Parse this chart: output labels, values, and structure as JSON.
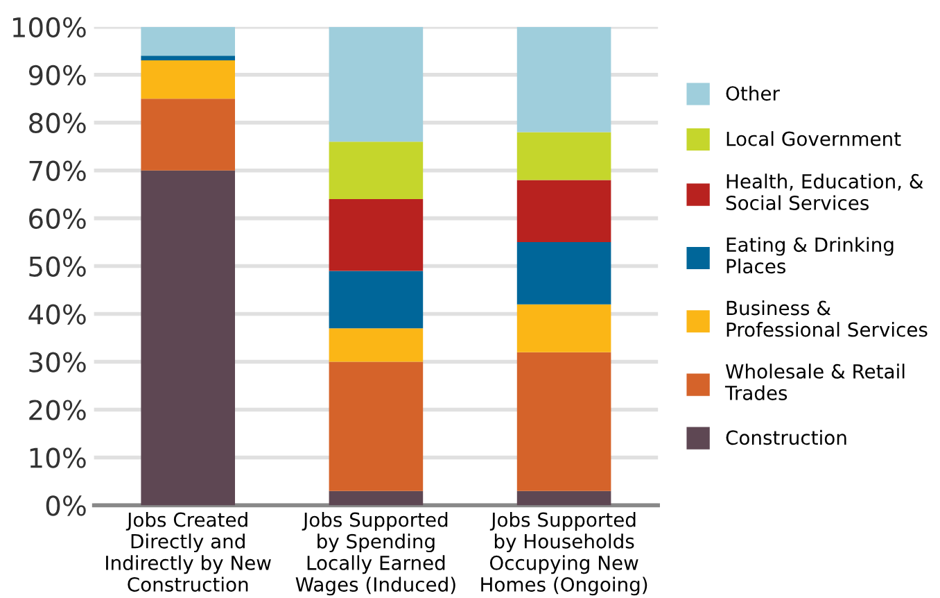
{
  "chart_data": {
    "type": "bar",
    "stacked": true,
    "categories": [
      "Jobs Created\nDirectly and\nIndirectly by New\nConstruction",
      "Jobs Supported\nby Spending\nLocally Earned\nWages (Induced)",
      "Jobs Supported\nby Households\nOccupying New\nHomes (Ongoing)"
    ],
    "series": [
      {
        "name": "Construction",
        "color": "#5e4753",
        "values": [
          70,
          3,
          3
        ]
      },
      {
        "name": "Wholesale & Retail\nTrades",
        "color": "#d5632a",
        "values": [
          15,
          27,
          29
        ]
      },
      {
        "name": "Business &\nProfessional Services",
        "color": "#fbb616",
        "values": [
          8,
          7,
          10
        ]
      },
      {
        "name": "Eating & Drinking\nPlaces",
        "color": "#006699",
        "values": [
          1,
          12,
          13
        ]
      },
      {
        "name": "Health, Education, &\nSocial Services",
        "color": "#b8221f",
        "values": [
          0,
          15,
          13
        ]
      },
      {
        "name": "Local Government",
        "color": "#c5d62c",
        "values": [
          0,
          12,
          10
        ]
      },
      {
        "name": "Other",
        "color": "#9fcedc",
        "values": [
          6,
          24,
          22
        ]
      }
    ],
    "ylim": [
      0,
      100
    ],
    "yticks": [
      {
        "value": 0,
        "label": "0%"
      },
      {
        "value": 10,
        "label": "10%"
      },
      {
        "value": 20,
        "label": "20%"
      },
      {
        "value": 30,
        "label": "30%"
      },
      {
        "value": 40,
        "label": "40%"
      },
      {
        "value": 50,
        "label": "50%"
      },
      {
        "value": 60,
        "label": "60%"
      },
      {
        "value": 70,
        "label": "70%"
      },
      {
        "value": 80,
        "label": "80%"
      },
      {
        "value": 90,
        "label": "90%"
      },
      {
        "value": 100,
        "label": "100%"
      }
    ],
    "grid": "y",
    "legend": "right"
  }
}
